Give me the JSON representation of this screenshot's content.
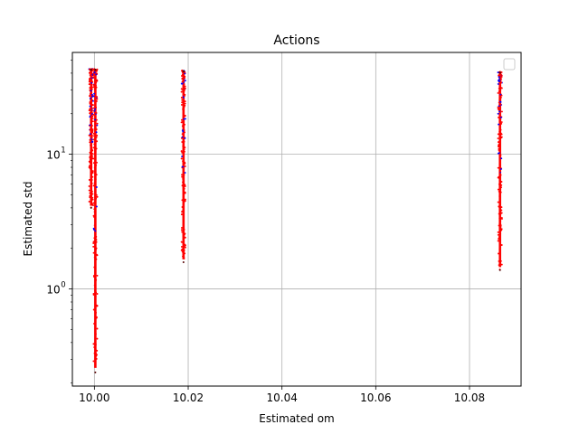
{
  "chart_data": {
    "type": "scatter",
    "title": "Actions",
    "xlabel": "Estimated om",
    "ylabel": "Estimated std",
    "xlim": [
      9.9953,
      10.091
    ],
    "ylim": [
      0.19,
      57
    ],
    "yscale": "log",
    "grid": true,
    "legend": {
      "placement": "top-right",
      "entries": []
    },
    "x_ticks": [
      {
        "value": 10.0,
        "label": "10.00"
      },
      {
        "value": 10.02,
        "label": "10.02"
      },
      {
        "value": 10.04,
        "label": "10.04"
      },
      {
        "value": 10.06,
        "label": "10.06"
      },
      {
        "value": 10.08,
        "label": "10.08"
      }
    ],
    "y_ticks": [
      {
        "value": 1,
        "label": "10",
        "exp": "0"
      },
      {
        "value": 10,
        "label": "10",
        "exp": "1"
      }
    ],
    "colors": {
      "red": "#ff0000",
      "blue": "#0000ff",
      "dark": "#550000"
    },
    "clusters": [
      {
        "x": 9.9993,
        "y_min": 4.0,
        "y_max": 43.0
      },
      {
        "x": 10.0002,
        "y_min": 0.24,
        "y_max": 43.0
      },
      {
        "x": 10.019,
        "y_min": 1.58,
        "y_max": 42.0
      },
      {
        "x": 10.0865,
        "y_min": 1.38,
        "y_max": 41.0
      }
    ]
  }
}
